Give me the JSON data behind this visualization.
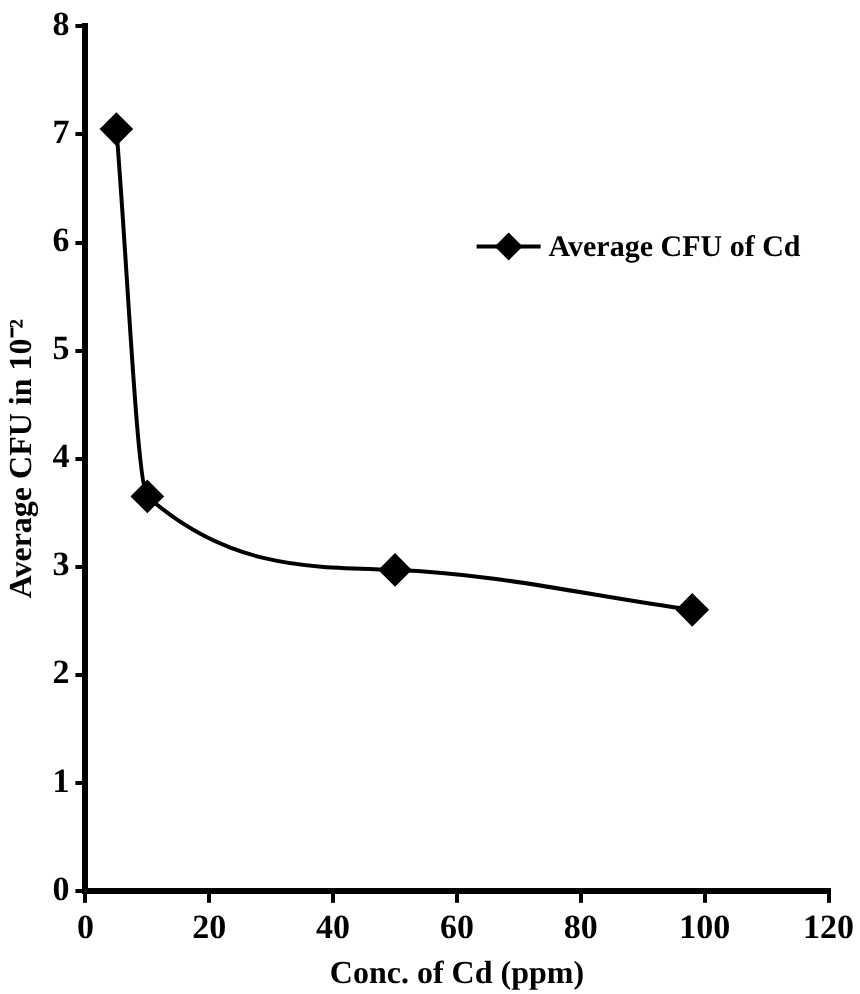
{
  "chart_data": {
    "type": "line",
    "xlabel": "Conc. of Cd (ppm)",
    "ylabel": "Average CFU in 10⁻²",
    "x": [
      5,
      10,
      50,
      98
    ],
    "series": [
      {
        "name": "Average CFU of Cd",
        "color": "#000000",
        "values": [
          7.05,
          3.65,
          2.97,
          2.6
        ]
      }
    ],
    "xlim": [
      0,
      120
    ],
    "xticks": [
      0,
      20,
      40,
      60,
      80,
      100,
      120
    ],
    "ylim": [
      0,
      8
    ],
    "yticks": [
      0,
      1,
      2,
      3,
      4,
      5,
      6,
      7,
      8
    ],
    "grid": false,
    "legend": "top right",
    "marker": "diamond",
    "line_style": "solid"
  }
}
